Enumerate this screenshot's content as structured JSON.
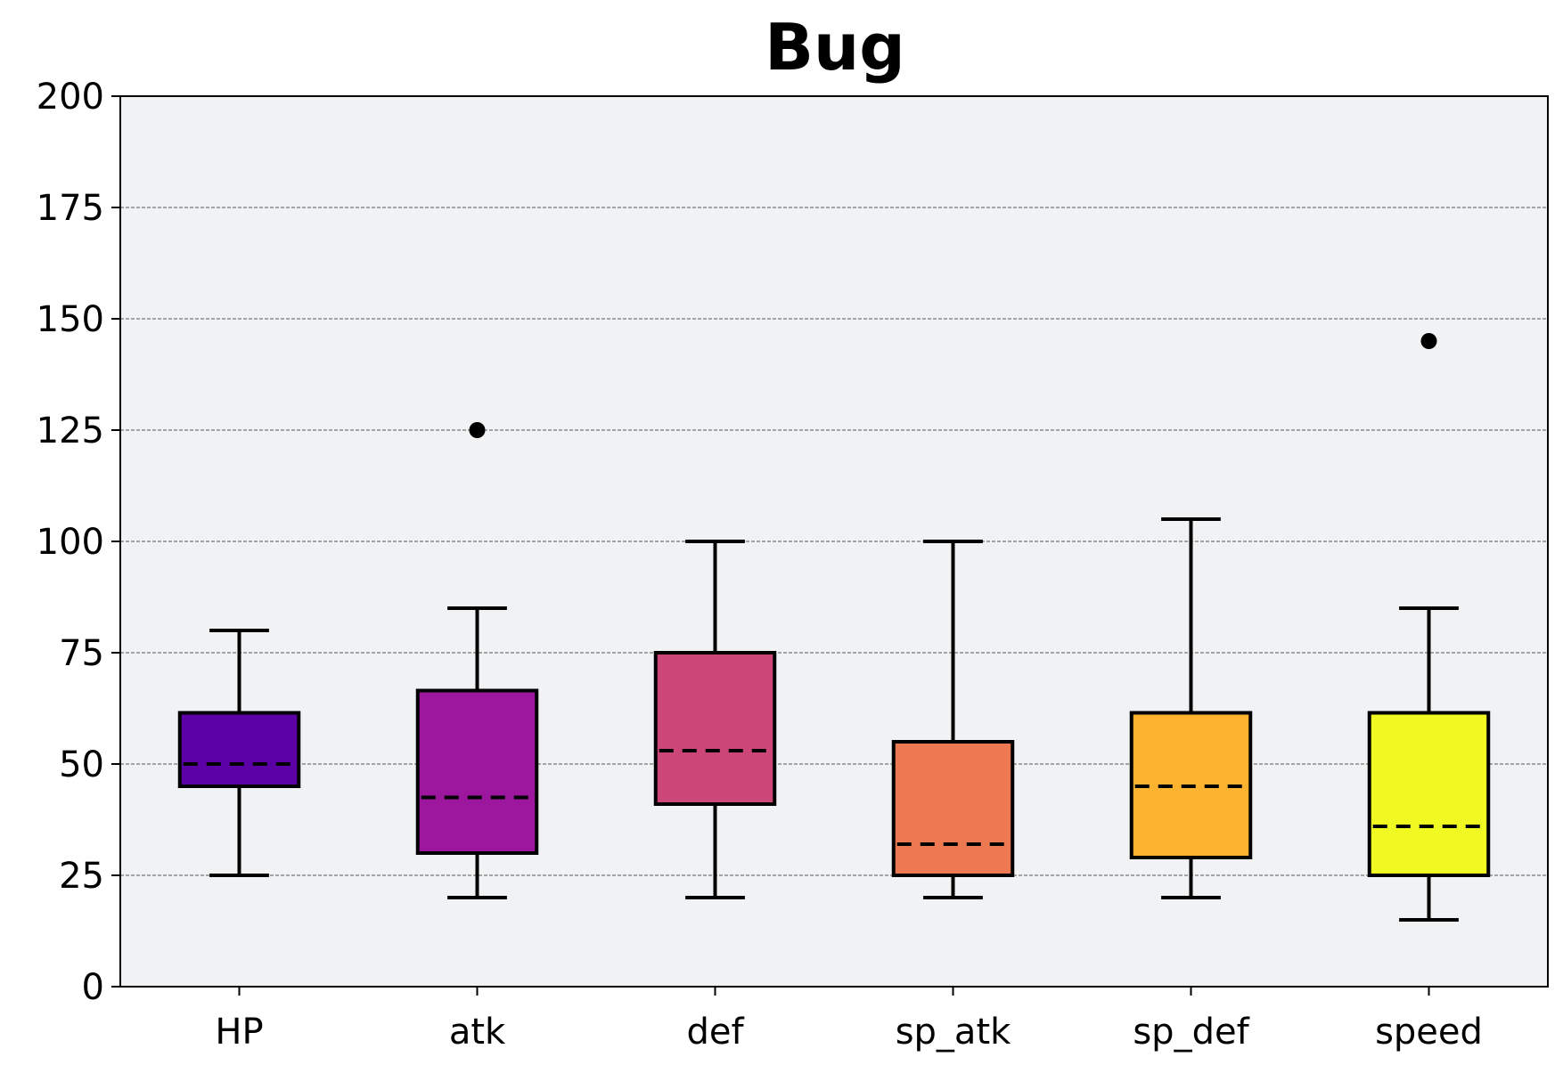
{
  "chart_data": {
    "type": "box",
    "title": "Bug",
    "xlabel": "",
    "ylabel": "",
    "ylim": [
      0,
      200
    ],
    "yticks": [
      0,
      25,
      50,
      75,
      100,
      125,
      150,
      175,
      200
    ],
    "grid": "horizontal-dashed",
    "background": "#f1f2f4",
    "categories": [
      "HP",
      "atk",
      "def",
      "sp_atk",
      "sp_def",
      "speed"
    ],
    "boxes": [
      {
        "label": "HP",
        "whisker_low": 25,
        "q1": 45,
        "median": 50,
        "q3": 61.5,
        "whisker_high": 80,
        "outliers": [],
        "color": "#5c01a6"
      },
      {
        "label": "atk",
        "whisker_low": 20,
        "q1": 30,
        "median": 42.5,
        "q3": 66.5,
        "whisker_high": 85,
        "outliers": [
          125
        ],
        "color": "#9c179e"
      },
      {
        "label": "def",
        "whisker_low": 20,
        "q1": 41,
        "median": 53,
        "q3": 75,
        "whisker_high": 100,
        "outliers": [],
        "color": "#cc4778"
      },
      {
        "label": "sp_atk",
        "whisker_low": 20,
        "q1": 25,
        "median": 32,
        "q3": 55,
        "whisker_high": 100,
        "outliers": [],
        "color": "#ed7953"
      },
      {
        "label": "sp_def",
        "whisker_low": 20,
        "q1": 29,
        "median": 45,
        "q3": 61.5,
        "whisker_high": 105,
        "outliers": [],
        "color": "#fdb32f"
      },
      {
        "label": "speed",
        "whisker_low": 15,
        "q1": 25,
        "median": 36,
        "q3": 61.5,
        "whisker_high": 85,
        "outliers": [
          145
        ],
        "color": "#f0f921"
      }
    ]
  }
}
